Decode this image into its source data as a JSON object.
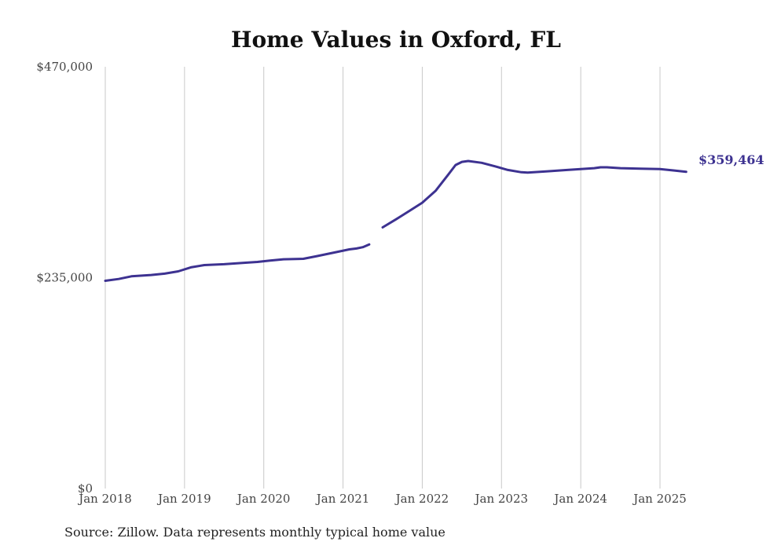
{
  "chart_data": {
    "type": "line",
    "title": "Home Values in Oxford, FL",
    "xlabel": "",
    "ylabel": "",
    "ylim": [
      0,
      470000
    ],
    "yticks": [
      {
        "value": 0,
        "label": "$0"
      },
      {
        "value": 235000,
        "label": "$235,000"
      },
      {
        "value": 470000,
        "label": "$470,000"
      }
    ],
    "xticks": [
      {
        "value": 2018.0,
        "label": "Jan 2018"
      },
      {
        "value": 2019.0,
        "label": "Jan 2019"
      },
      {
        "value": 2020.0,
        "label": "Jan 2020"
      },
      {
        "value": 2021.0,
        "label": "Jan 2021"
      },
      {
        "value": 2022.0,
        "label": "Jan 2022"
      },
      {
        "value": 2023.0,
        "label": "Jan 2023"
      },
      {
        "value": 2024.0,
        "label": "Jan 2024"
      },
      {
        "value": 2025.0,
        "label": "Jan 2025"
      }
    ],
    "grid": "vertical",
    "color": "#3d3291",
    "series": [
      {
        "segments": [
          [
            [
              2018.0,
              231500
            ],
            [
              2018.17,
              233500
            ],
            [
              2018.33,
              236500
            ],
            [
              2018.58,
              238000
            ],
            [
              2018.75,
              239500
            ],
            [
              2018.92,
              242000
            ],
            [
              2019.08,
              246500
            ],
            [
              2019.25,
              249000
            ],
            [
              2019.5,
              250000
            ],
            [
              2019.75,
              251500
            ],
            [
              2019.92,
              252500
            ],
            [
              2020.08,
              254000
            ],
            [
              2020.25,
              255500
            ],
            [
              2020.5,
              256000
            ],
            [
              2020.67,
              259000
            ],
            [
              2020.92,
              263500
            ],
            [
              2021.08,
              266500
            ],
            [
              2021.17,
              267500
            ],
            [
              2021.25,
              269000
            ],
            [
              2021.33,
              272000
            ]
          ],
          [
            [
              2021.5,
              291000
            ],
            [
              2021.67,
              300000
            ],
            [
              2021.83,
              309000
            ],
            [
              2022.0,
              318500
            ],
            [
              2022.17,
              332000
            ],
            [
              2022.33,
              350000
            ],
            [
              2022.42,
              360500
            ],
            [
              2022.5,
              364000
            ],
            [
              2022.58,
              365000
            ],
            [
              2022.75,
              363000
            ],
            [
              2022.92,
              359000
            ],
            [
              2023.08,
              355000
            ],
            [
              2023.25,
              352500
            ],
            [
              2023.33,
              352000
            ],
            [
              2023.58,
              353500
            ],
            [
              2023.83,
              355000
            ],
            [
              2024.0,
              356000
            ],
            [
              2024.17,
              357000
            ],
            [
              2024.25,
              358000
            ],
            [
              2024.33,
              358000
            ],
            [
              2024.5,
              357000
            ],
            [
              2024.75,
              356500
            ],
            [
              2025.0,
              356000
            ],
            [
              2025.17,
              354500
            ],
            [
              2025.33,
              353000
            ]
          ]
        ]
      }
    ],
    "end_label": "$359,464"
  },
  "source": "Source: Zillow. Data represents monthly typical home value"
}
